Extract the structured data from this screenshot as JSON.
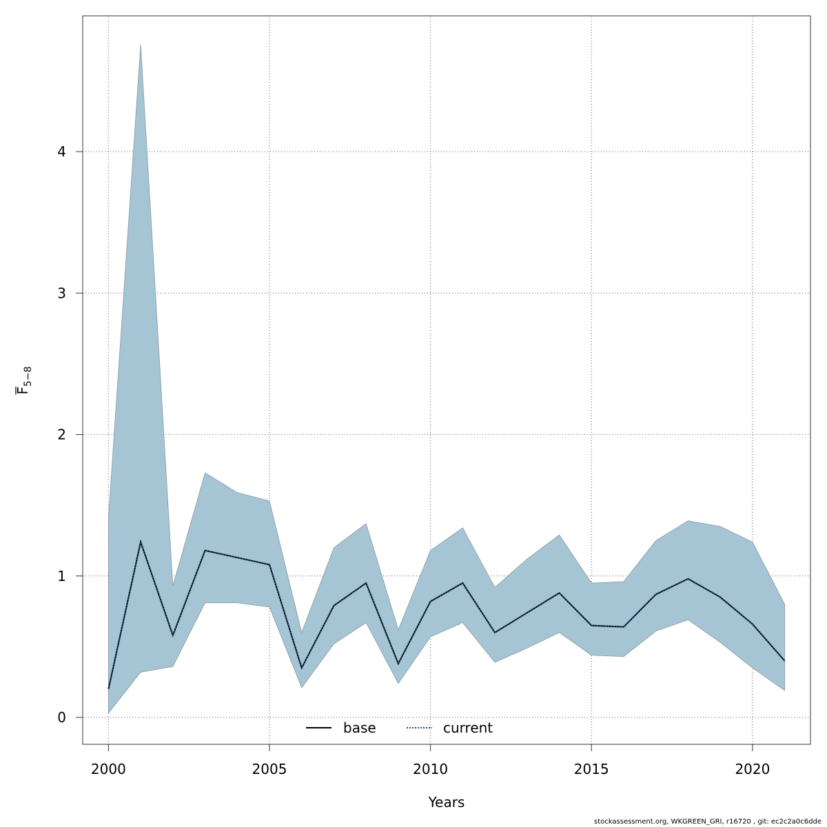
{
  "chart_data": {
    "type": "area",
    "title": "",
    "xlabel": "Years",
    "ylabel_base": "F",
    "ylabel_sub": "5−8",
    "xlim": [
      1999.2,
      2021.8
    ],
    "ylim": [
      -0.19,
      4.96
    ],
    "xticks": [
      2000,
      2005,
      2010,
      2015,
      2020
    ],
    "yticks": [
      0,
      1,
      2,
      3,
      4
    ],
    "grid": true,
    "legend_position": "bottom-center",
    "band_color": "#a5c4d4",
    "x": [
      2000,
      2001,
      2002,
      2003,
      2004,
      2005,
      2006,
      2007,
      2008,
      2009,
      2010,
      2011,
      2012,
      2013,
      2014,
      2015,
      2016,
      2017,
      2018,
      2019,
      2020,
      2021
    ],
    "band_upper": [
      1.41,
      4.76,
      0.93,
      1.73,
      1.59,
      1.53,
      0.6,
      1.2,
      1.37,
      0.62,
      1.18,
      1.34,
      0.92,
      1.12,
      1.29,
      0.95,
      0.96,
      1.25,
      1.39,
      1.35,
      1.24,
      0.8
    ],
    "band_lower": [
      0.03,
      0.32,
      0.36,
      0.81,
      0.81,
      0.78,
      0.21,
      0.52,
      0.67,
      0.24,
      0.57,
      0.67,
      0.39,
      0.49,
      0.6,
      0.44,
      0.43,
      0.61,
      0.69,
      0.53,
      0.35,
      0.19
    ],
    "series": [
      {
        "name": "base",
        "style": "solid",
        "color": "#000000",
        "values": [
          0.2,
          1.24,
          0.58,
          1.18,
          1.13,
          1.08,
          0.35,
          0.79,
          0.95,
          0.38,
          0.82,
          0.95,
          0.6,
          0.74,
          0.88,
          0.65,
          0.64,
          0.87,
          0.98,
          0.85,
          0.66,
          0.4
        ]
      },
      {
        "name": "current",
        "style": "dotted",
        "color": "#1a4a6e",
        "values": [
          0.2,
          1.24,
          0.58,
          1.18,
          1.13,
          1.08,
          0.35,
          0.79,
          0.95,
          0.38,
          0.82,
          0.95,
          0.6,
          0.74,
          0.88,
          0.65,
          0.64,
          0.87,
          0.98,
          0.85,
          0.66,
          0.4
        ]
      }
    ]
  },
  "footer": "stockassessment.org, WKGREEN_GRI, r16720 , git: ec2c2a0c6dde"
}
